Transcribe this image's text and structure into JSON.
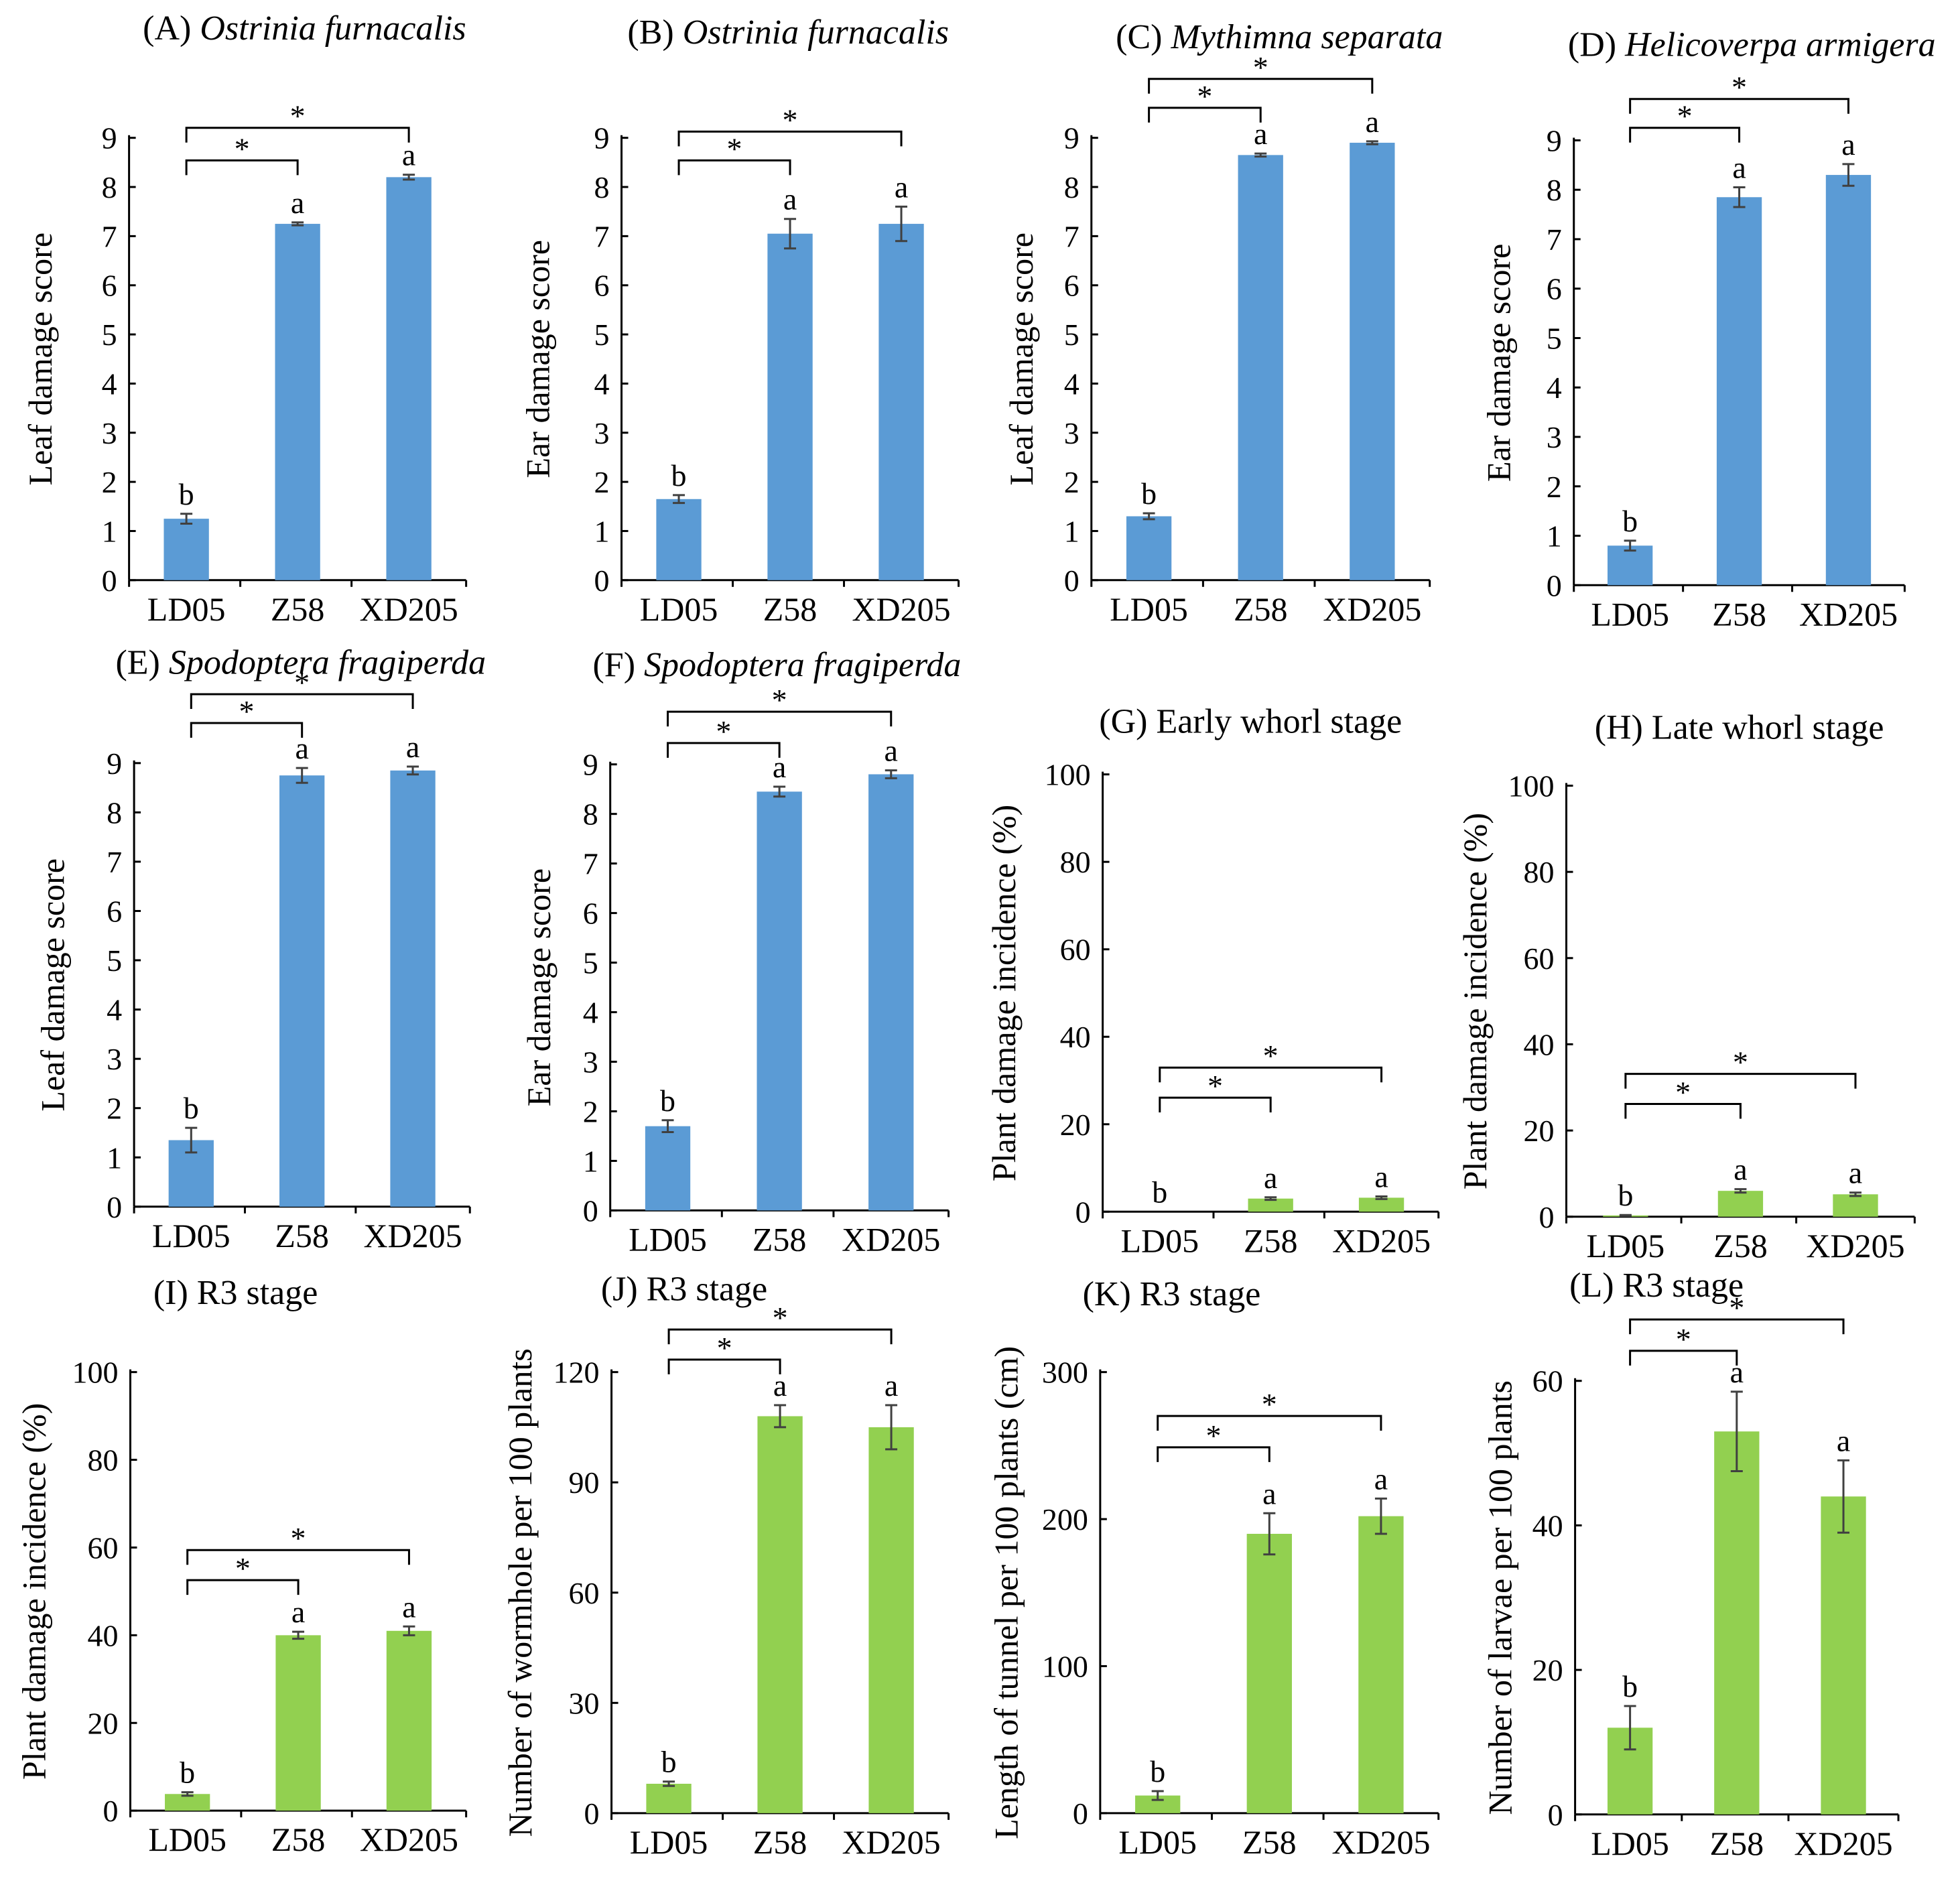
{
  "colors": {
    "blue": "#5B9BD5",
    "green": "#92D050",
    "axis": "#000000",
    "error": "#404040"
  },
  "chart_data": [
    {
      "id": "A",
      "type": "bar",
      "label": "(A) ",
      "species": "Ostrinia furnacalis",
      "ylabel": "Leaf damage score",
      "categories": [
        "LD05",
        "Z58",
        "XD205"
      ],
      "values": [
        1.25,
        7.25,
        8.2
      ],
      "errors": [
        0.1,
        0.03,
        0.05
      ],
      "letters": [
        "b",
        "a",
        "a"
      ],
      "ylim": [
        0,
        9
      ],
      "yticks": [
        0,
        1,
        2,
        3,
        4,
        5,
        6,
        7,
        8,
        9
      ],
      "color": "blue",
      "sig_pairs": [
        [
          0,
          1
        ],
        [
          0,
          2
        ]
      ],
      "sig_marker": "*"
    },
    {
      "id": "B",
      "type": "bar",
      "label": "(B) ",
      "species": "Ostrinia furnacalis",
      "ylabel": "Ear damage score",
      "categories": [
        "LD05",
        "Z58",
        "XD205"
      ],
      "values": [
        1.65,
        7.05,
        7.25
      ],
      "errors": [
        0.08,
        0.3,
        0.35
      ],
      "letters": [
        "b",
        "a",
        "a"
      ],
      "ylim": [
        0,
        9
      ],
      "yticks": [
        0,
        1,
        2,
        3,
        4,
        5,
        6,
        7,
        8,
        9
      ],
      "color": "blue",
      "sig_pairs": [
        [
          0,
          1
        ],
        [
          0,
          2
        ]
      ],
      "sig_marker": "*"
    },
    {
      "id": "C",
      "type": "bar",
      "label": "(C) ",
      "species": "Mythimna separata",
      "ylabel": "Leaf damage score",
      "categories": [
        "LD05",
        "Z58",
        "XD205"
      ],
      "values": [
        1.3,
        8.65,
        8.9
      ],
      "errors": [
        0.06,
        0.03,
        0.03
      ],
      "letters": [
        "b",
        "a",
        "a"
      ],
      "ylim": [
        0,
        9
      ],
      "yticks": [
        0,
        1,
        2,
        3,
        4,
        5,
        6,
        7,
        8,
        9
      ],
      "color": "blue",
      "sig_pairs": [
        [
          0,
          1
        ],
        [
          0,
          2
        ]
      ],
      "sig_marker": "*"
    },
    {
      "id": "D",
      "type": "bar",
      "label": "(D) ",
      "species": "Helicoverpa armigera",
      "ylabel": "Ear damage score",
      "categories": [
        "LD05",
        "Z58",
        "XD205"
      ],
      "values": [
        0.8,
        7.85,
        8.3
      ],
      "errors": [
        0.1,
        0.2,
        0.22
      ],
      "letters": [
        "b",
        "a",
        "a"
      ],
      "ylim": [
        0,
        9
      ],
      "yticks": [
        0,
        1,
        2,
        3,
        4,
        5,
        6,
        7,
        8,
        9
      ],
      "color": "blue",
      "sig_pairs": [
        [
          0,
          1
        ],
        [
          0,
          2
        ]
      ],
      "sig_marker": "*"
    },
    {
      "id": "E",
      "type": "bar",
      "label": "(E) ",
      "species": "Spodoptera fragiperda",
      "ylabel": "Leaf damage score",
      "categories": [
        "LD05",
        "Z58",
        "XD205"
      ],
      "values": [
        1.35,
        8.75,
        8.85
      ],
      "errors": [
        0.25,
        0.15,
        0.08
      ],
      "letters": [
        "b",
        "a",
        "a"
      ],
      "ylim": [
        0,
        9
      ],
      "yticks": [
        0,
        1,
        2,
        3,
        4,
        5,
        6,
        7,
        8,
        9
      ],
      "color": "blue",
      "sig_pairs": [
        [
          0,
          1
        ],
        [
          0,
          2
        ]
      ],
      "sig_marker": "*"
    },
    {
      "id": "F",
      "type": "bar",
      "label": "(F) ",
      "species": "Spodoptera fragiperda",
      "ylabel": "Ear damage score",
      "categories": [
        "LD05",
        "Z58",
        "XD205"
      ],
      "values": [
        1.7,
        8.45,
        8.8
      ],
      "errors": [
        0.12,
        0.1,
        0.08
      ],
      "letters": [
        "b",
        "a",
        "a"
      ],
      "ylim": [
        0,
        9
      ],
      "yticks": [
        0,
        1,
        2,
        3,
        4,
        5,
        6,
        7,
        8,
        9
      ],
      "color": "blue",
      "sig_pairs": [
        [
          0,
          1
        ],
        [
          0,
          2
        ]
      ],
      "sig_marker": "*"
    },
    {
      "id": "G",
      "type": "bar",
      "label": "(G) Early whorl stage",
      "species": "",
      "ylabel": "Plant damage incidence (%)",
      "categories": [
        "LD05",
        "Z58",
        "XD205"
      ],
      "values": [
        0,
        3,
        3.2
      ],
      "errors": [
        0,
        0.3,
        0.3
      ],
      "letters": [
        "b",
        "a",
        "a"
      ],
      "ylim": [
        0,
        100
      ],
      "yticks": [
        0,
        20,
        40,
        60,
        80,
        100
      ],
      "color": "green",
      "sig_pairs": [
        [
          0,
          1
        ],
        [
          0,
          2
        ]
      ],
      "sig_marker": "*"
    },
    {
      "id": "H",
      "type": "bar",
      "label": "(H) Late whorl stage",
      "species": "",
      "ylabel": "Plant damage incidence (%)",
      "categories": [
        "LD05",
        "Z58",
        "XD205"
      ],
      "values": [
        0.3,
        6,
        5.2
      ],
      "errors": [
        0.1,
        0.4,
        0.4
      ],
      "letters": [
        "b",
        "a",
        "a"
      ],
      "ylim": [
        0,
        100
      ],
      "yticks": [
        0,
        20,
        40,
        60,
        80,
        100
      ],
      "color": "green",
      "sig_pairs": [
        [
          0,
          1
        ],
        [
          0,
          2
        ]
      ],
      "sig_marker": "*"
    },
    {
      "id": "I",
      "type": "bar",
      "label": "(I) R3 stage",
      "species": "",
      "ylabel": "Plant damage incidence (%)",
      "categories": [
        "LD05",
        "Z58",
        "XD205"
      ],
      "values": [
        3.8,
        40,
        41
      ],
      "errors": [
        0.4,
        0.8,
        1.0
      ],
      "letters": [
        "b",
        "a",
        "a"
      ],
      "ylim": [
        0,
        100
      ],
      "yticks": [
        0,
        20,
        40,
        60,
        80,
        100
      ],
      "color": "green",
      "sig_pairs": [
        [
          0,
          1
        ],
        [
          0,
          2
        ]
      ],
      "sig_marker": "*"
    },
    {
      "id": "J",
      "type": "bar",
      "label": "(J) R3 stage",
      "species": "",
      "ylabel": "Number of wormhole per 100 plants",
      "categories": [
        "LD05",
        "Z58",
        "XD205"
      ],
      "values": [
        8,
        108,
        105
      ],
      "errors": [
        0.6,
        3,
        6
      ],
      "letters": [
        "b",
        "a",
        "a"
      ],
      "ylim": [
        0,
        120
      ],
      "yticks": [
        0,
        30,
        60,
        90,
        120
      ],
      "color": "green",
      "sig_pairs": [
        [
          0,
          1
        ],
        [
          0,
          2
        ]
      ],
      "sig_marker": "*"
    },
    {
      "id": "K",
      "type": "bar",
      "label": "(K) R3 stage",
      "species": "",
      "ylabel": "Length of tunnel per 100 plants (cm)",
      "categories": [
        "LD05",
        "Z58",
        "XD205"
      ],
      "values": [
        12,
        190,
        202
      ],
      "errors": [
        3,
        14,
        12
      ],
      "letters": [
        "b",
        "a",
        "a"
      ],
      "ylim": [
        0,
        300
      ],
      "yticks": [
        0,
        100,
        200,
        300
      ],
      "color": "green",
      "sig_pairs": [
        [
          0,
          1
        ],
        [
          0,
          2
        ]
      ],
      "sig_marker": "*"
    },
    {
      "id": "L",
      "type": "bar",
      "label": "(L) R3 stage",
      "species": "",
      "ylabel": "Number of larvae per 100 plants",
      "categories": [
        "LD05",
        "Z58",
        "XD205"
      ],
      "values": [
        12,
        53,
        44
      ],
      "errors": [
        3,
        5.5,
        5
      ],
      "letters": [
        "b",
        "a",
        "a"
      ],
      "ylim": [
        0,
        60
      ],
      "yticks": [
        0,
        20,
        40,
        60
      ],
      "color": "green",
      "sig_pairs": [
        [
          0,
          1
        ],
        [
          0,
          2
        ]
      ],
      "sig_marker": "*"
    }
  ]
}
